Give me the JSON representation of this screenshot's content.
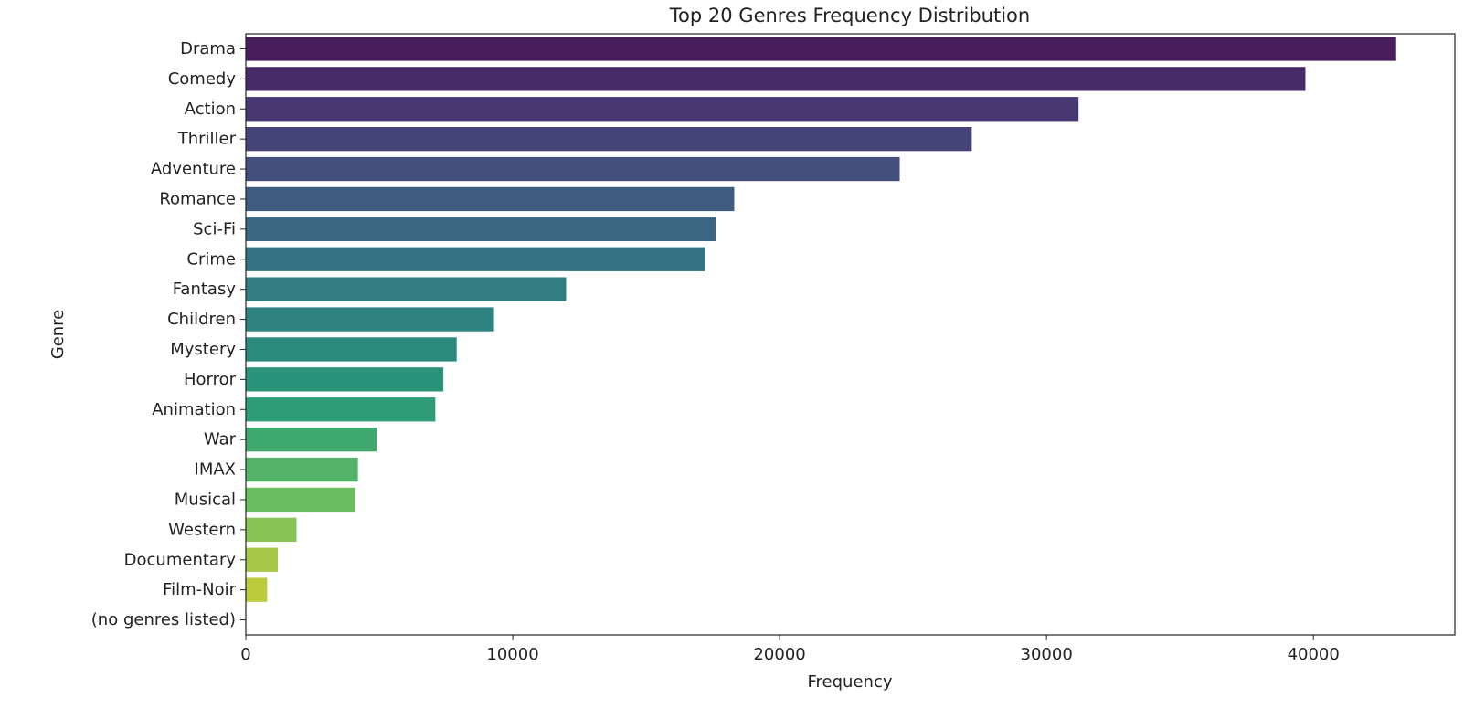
{
  "chart_data": {
    "type": "bar",
    "orientation": "horizontal",
    "title": "Top 20 Genres Frequency Distribution",
    "xlabel": "Frequency",
    "ylabel": "Genre",
    "categories": [
      "Drama",
      "Comedy",
      "Action",
      "Thriller",
      "Adventure",
      "Romance",
      "Sci-Fi",
      "Crime",
      "Fantasy",
      "Children",
      "Mystery",
      "Horror",
      "Animation",
      "War",
      "IMAX",
      "Musical",
      "Western",
      "Documentary",
      "Film-Noir",
      "(no genres listed)"
    ],
    "values": [
      43100,
      39700,
      31200,
      27200,
      24500,
      18300,
      17600,
      17200,
      12000,
      9300,
      7900,
      7400,
      7100,
      4900,
      4200,
      4100,
      1900,
      1200,
      800,
      0
    ],
    "xlim": [
      0,
      45300
    ],
    "xticks": [
      0,
      10000,
      20000,
      30000,
      40000
    ],
    "xtick_labels": [
      "0",
      "10000",
      "20000",
      "30000",
      "40000"
    ],
    "grid": false,
    "colormap": "viridis",
    "colors": [
      "#471d5b",
      "#472a68",
      "#473773",
      "#454377",
      "#434f7c",
      "#3f5b80",
      "#3b6783",
      "#357282",
      "#317d82",
      "#2e8280",
      "#2a8a7d",
      "#2b937a",
      "#2f9c78",
      "#3ea86f",
      "#53b36a",
      "#6bbd62",
      "#89c255",
      "#a6c748",
      "#bacb3b",
      "#c9cf32"
    ]
  }
}
